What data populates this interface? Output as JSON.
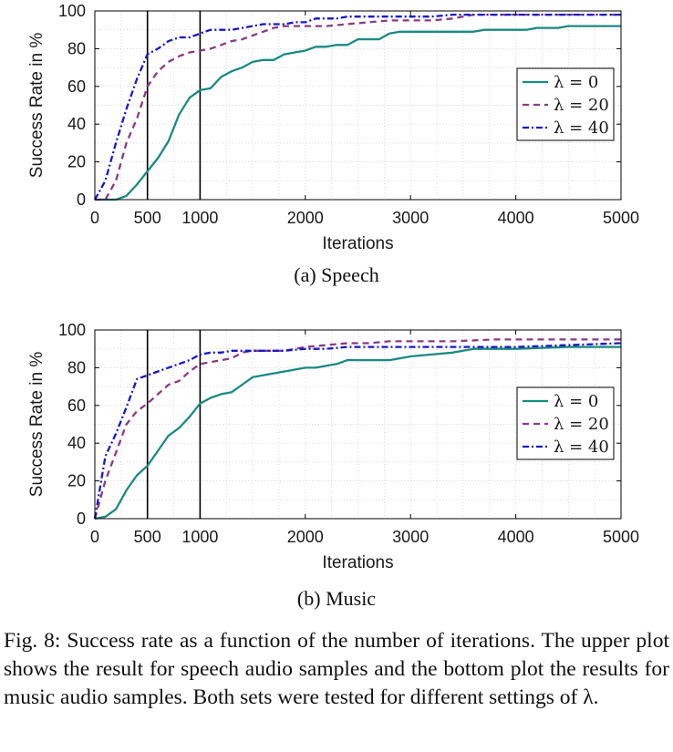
{
  "charts": [
    {
      "subcaption": "(a)  Speech",
      "chart_data": {
        "type": "line",
        "xlabel": "Iterations",
        "ylabel": "Success Rate in %",
        "xlim": [
          0,
          5000
        ],
        "ylim": [
          0,
          100
        ],
        "xticks": [
          0,
          500,
          1000,
          2000,
          3000,
          4000,
          5000
        ],
        "yticks": [
          0,
          20,
          40,
          60,
          80,
          100
        ],
        "vlines": [
          500,
          1000
        ],
        "grid": true,
        "legend_position": "middle-right",
        "series": [
          {
            "name": "λ = 0",
            "color": "#1a8a80",
            "dash": "solid",
            "x": [
              0,
              100,
              200,
              300,
              400,
              500,
              600,
              700,
              800,
              900,
              1000,
              1100,
              1200,
              1300,
              1400,
              1500,
              1600,
              1700,
              1800,
              1900,
              2000,
              2100,
              2200,
              2300,
              2400,
              2500,
              2600,
              2700,
              2800,
              2900,
              3000,
              3200,
              3400,
              3600,
              3700,
              3900,
              4100,
              4200,
              4300,
              4400,
              4500,
              4800,
              5000
            ],
            "y": [
              0,
              0,
              0,
              2,
              8,
              15,
              22,
              31,
              45,
              54,
              58,
              59,
              65,
              68,
              70,
              73,
              74,
              74,
              77,
              78,
              79,
              81,
              81,
              82,
              82,
              85,
              85,
              85,
              88,
              89,
              89,
              89,
              89,
              89,
              90,
              90,
              90,
              91,
              91,
              91,
              92,
              92,
              92
            ]
          },
          {
            "name": "λ = 20",
            "color": "#8b3a83",
            "dash": "7,5",
            "x": [
              0,
              100,
              200,
              300,
              400,
              500,
              600,
              700,
              800,
              900,
              1000,
              1100,
              1200,
              1300,
              1400,
              1500,
              1600,
              1700,
              1800,
              1900,
              2000,
              2200,
              2400,
              2600,
              2800,
              3000,
              3200,
              3400,
              3600,
              4000,
              4400,
              4500,
              5000
            ],
            "y": [
              0,
              0,
              10,
              30,
              43,
              60,
              68,
              73,
              76,
              78,
              79,
              80,
              82,
              84,
              85,
              87,
              89,
              91,
              92,
              92,
              92,
              92,
              93,
              94,
              95,
              95,
              95,
              96,
              98,
              98,
              98,
              98,
              98
            ]
          },
          {
            "name": "λ = 40",
            "color": "#1818c8",
            "dash": "7,3,2,3",
            "x": [
              0,
              100,
              200,
              300,
              400,
              500,
              600,
              700,
              800,
              900,
              1000,
              1100,
              1200,
              1300,
              1400,
              1500,
              1600,
              1700,
              1800,
              1900,
              2000,
              2100,
              2200,
              2300,
              2400,
              2500,
              2800,
              3000,
              3200,
              3400,
              3600,
              4000,
              4500,
              5000
            ],
            "y": [
              0,
              10,
              30,
              48,
              64,
              77,
              80,
              84,
              86,
              86,
              88,
              90,
              90,
              90,
              91,
              92,
              93,
              93,
              93,
              94,
              94,
              96,
              96,
              96,
              97,
              97,
              97,
              97,
              97,
              98,
              98,
              98,
              98,
              98
            ]
          }
        ]
      }
    },
    {
      "subcaption": "(b)  Music",
      "chart_data": {
        "type": "line",
        "xlabel": "Iterations",
        "ylabel": "Success Rate in %",
        "xlim": [
          0,
          5000
        ],
        "ylim": [
          0,
          100
        ],
        "xticks": [
          0,
          500,
          1000,
          2000,
          3000,
          4000,
          5000
        ],
        "yticks": [
          0,
          20,
          40,
          60,
          80,
          100
        ],
        "vlines": [
          500,
          1000
        ],
        "grid": true,
        "legend_position": "middle-right",
        "series": [
          {
            "name": "λ = 0",
            "color": "#1a8a80",
            "dash": "solid",
            "x": [
              0,
              100,
              200,
              300,
              400,
              500,
              600,
              700,
              800,
              900,
              1000,
              1100,
              1200,
              1300,
              1400,
              1500,
              1700,
              1900,
              2000,
              2100,
              2200,
              2300,
              2400,
              2600,
              2800,
              3000,
              3200,
              3400,
              3600,
              4000,
              4500,
              5000
            ],
            "y": [
              0,
              1,
              5,
              15,
              23,
              28,
              36,
              44,
              48,
              54,
              61,
              64,
              66,
              67,
              71,
              75,
              77,
              79,
              80,
              80,
              81,
              82,
              84,
              84,
              84,
              86,
              87,
              88,
              90,
              90,
              91,
              91
            ]
          },
          {
            "name": "λ = 20",
            "color": "#8b3a83",
            "dash": "7,5",
            "x": [
              0,
              100,
              200,
              300,
              400,
              500,
              600,
              700,
              800,
              900,
              1000,
              1100,
              1200,
              1300,
              1400,
              1500,
              1800,
              2000,
              2200,
              2400,
              2600,
              2800,
              3000,
              3400,
              3800,
              4000,
              4500,
              5000
            ],
            "y": [
              0,
              20,
              35,
              50,
              57,
              61,
              66,
              71,
              73,
              78,
              82,
              83,
              84,
              85,
              88,
              89,
              89,
              91,
              92,
              93,
              93,
              94,
              94,
              94,
              95,
              95,
              95,
              95
            ]
          },
          {
            "name": "λ = 40",
            "color": "#1818c8",
            "dash": "7,3,2,3",
            "x": [
              0,
              100,
              200,
              300,
              400,
              500,
              600,
              700,
              800,
              900,
              1000,
              1100,
              1200,
              1300,
              1400,
              1500,
              1800,
              2000,
              2200,
              2400,
              2600,
              2800,
              3000,
              3400,
              3800,
              4000,
              4500,
              5000
            ],
            "y": [
              0,
              33,
              45,
              59,
              74,
              76,
              78,
              80,
              82,
              84,
              87,
              88,
              88,
              89,
              89,
              89,
              89,
              90,
              90,
              91,
              91,
              91,
              91,
              91,
              91,
              91,
              92,
              93
            ]
          }
        ]
      }
    }
  ],
  "caption": "Fig. 8: Success rate as a function of the number of iterations. The upper plot shows the result for speech audio samples and the bottom plot the results for music audio samples. Both sets were tested for different settings of λ."
}
